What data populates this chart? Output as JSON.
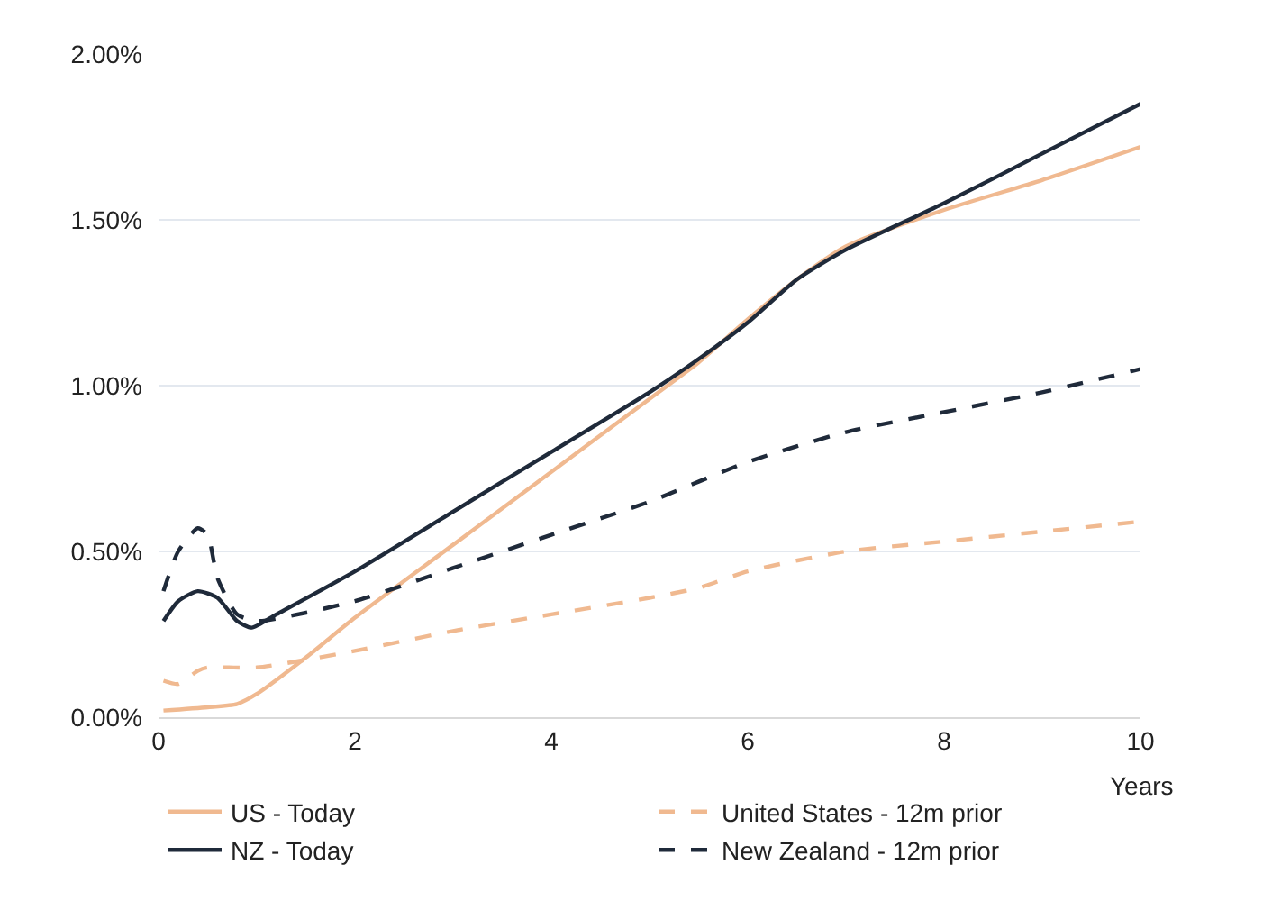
{
  "chart_data": {
    "type": "line",
    "xlabel": "Years",
    "xlim": [
      0,
      10
    ],
    "xticks": [
      0,
      2,
      4,
      6,
      8,
      10
    ],
    "ylim": [
      0,
      2
    ],
    "yticks": [
      {
        "value": 0,
        "label": "0.00%"
      },
      {
        "value": 0.5,
        "label": "0.50%"
      },
      {
        "value": 1,
        "label": "1.00%"
      },
      {
        "value": 1.5,
        "label": "1.50%"
      },
      {
        "value": 2,
        "label": "2.00%"
      }
    ],
    "grid": "y",
    "legend": "bottom",
    "marker": "none",
    "series": [
      {
        "name": "US - Today",
        "color": "#f0b990",
        "line_style": "solid",
        "x": [
          0.05,
          0.5,
          0.8,
          1.0,
          1.5,
          2,
          3,
          4,
          5,
          5.5,
          6,
          6.5,
          7,
          8,
          9,
          10
        ],
        "values": [
          0.02,
          0.03,
          0.04,
          0.07,
          0.18,
          0.3,
          0.52,
          0.74,
          0.96,
          1.07,
          1.2,
          1.32,
          1.42,
          1.53,
          1.62,
          1.72
        ]
      },
      {
        "name": "United States - 12m prior",
        "color": "#f0b990",
        "line_style": "dashed",
        "x": [
          0.05,
          0.2,
          0.4,
          0.5,
          1,
          2,
          3,
          4,
          5,
          5.5,
          6,
          7,
          8,
          9,
          10
        ],
        "values": [
          0.11,
          0.1,
          0.14,
          0.15,
          0.15,
          0.2,
          0.26,
          0.31,
          0.36,
          0.39,
          0.44,
          0.5,
          0.53,
          0.56,
          0.59
        ]
      },
      {
        "name": "NZ - Today",
        "color": "#1f2a3a",
        "line_style": "solid",
        "x": [
          0.05,
          0.2,
          0.4,
          0.6,
          0.8,
          0.95,
          1.2,
          2,
          3,
          4,
          5,
          5.5,
          6,
          6.5,
          7,
          8,
          9,
          10
        ],
        "values": [
          0.29,
          0.35,
          0.38,
          0.36,
          0.29,
          0.27,
          0.31,
          0.44,
          0.62,
          0.8,
          0.98,
          1.08,
          1.19,
          1.32,
          1.41,
          1.55,
          1.7,
          1.85
        ]
      },
      {
        "name": "New Zealand - 12m prior",
        "color": "#1f2a3a",
        "line_style": "dashed",
        "x": [
          0.05,
          0.2,
          0.4,
          0.5,
          0.6,
          0.8,
          1,
          2,
          3,
          4,
          5,
          6,
          7,
          8,
          9,
          10
        ],
        "values": [
          0.38,
          0.5,
          0.57,
          0.55,
          0.42,
          0.31,
          0.29,
          0.35,
          0.45,
          0.55,
          0.65,
          0.77,
          0.86,
          0.92,
          0.98,
          1.05
        ]
      }
    ]
  }
}
